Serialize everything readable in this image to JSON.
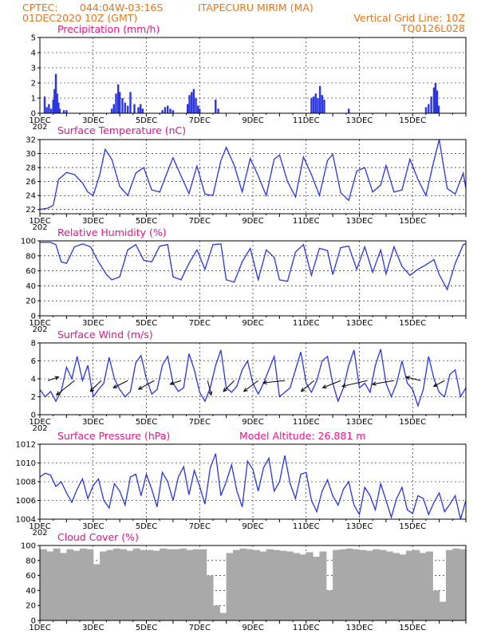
{
  "header": {
    "source": "CPTEC:",
    "coords": "044:04W-03:16S",
    "location": "ITAPECURU MIRIM (MA)",
    "datetime": "01DEC2020 10Z (GMT)",
    "grid_note": "Vertical Grid Line: 10Z",
    "code": "TQ0126L028"
  },
  "model_altitude": "Model Altitude: 26.881 m",
  "x_axis": {
    "day_ticks": [
      "1DEC",
      "3DEC",
      "5DEC",
      "7DEC",
      "9DEC",
      "11DEC",
      "13DEC",
      "15DEC"
    ],
    "first_label_sub": "202"
  },
  "colors": {
    "header": "#e07820",
    "panel_title": "#e8168a",
    "series": "#2b35e0",
    "cloud": "#a9a9a9"
  },
  "chart_data": [
    {
      "type": "bar",
      "title": "Precipitation (mm/h)",
      "ylim": [
        0,
        5
      ],
      "yticks": [
        "0",
        "1",
        "2",
        "3",
        "4",
        "5"
      ],
      "x": [
        0.18,
        0.26,
        0.34,
        0.42,
        0.5,
        0.55,
        0.6,
        0.65,
        0.7,
        0.75,
        0.9,
        1.0,
        2.7,
        2.78,
        2.86,
        2.94,
        3.0,
        3.1,
        3.2,
        3.3,
        3.4,
        3.55,
        3.7,
        3.78,
        3.86,
        4.6,
        4.7,
        4.8,
        4.9,
        5.0,
        5.55,
        5.62,
        5.7,
        5.78,
        5.86,
        5.94,
        6.0,
        6.6,
        6.7,
        10.2,
        10.28,
        10.36,
        10.44,
        10.52,
        10.6,
        10.68,
        11.6,
        14.5,
        14.6,
        14.7,
        14.8,
        14.86,
        14.92,
        14.98
      ],
      "values": [
        1.1,
        0.4,
        0.6,
        0.3,
        0.9,
        1.6,
        2.6,
        1.3,
        0.7,
        0.3,
        0.2,
        0.2,
        0.3,
        0.6,
        1.3,
        1.9,
        1.4,
        1.0,
        0.7,
        0.5,
        1.4,
        0.6,
        0.4,
        0.6,
        0.3,
        0.2,
        0.4,
        0.5,
        0.3,
        0.2,
        0.6,
        1.2,
        1.4,
        1.6,
        1.0,
        0.5,
        0.3,
        0.9,
        0.3,
        1.0,
        1.1,
        1.3,
        1.0,
        1.8,
        1.2,
        0.9,
        0.3,
        0.4,
        0.6,
        1.1,
        1.7,
        2.0,
        1.5,
        0.5
      ]
    },
    {
      "type": "line",
      "title": "Surface Temperature (nC)",
      "ylim": [
        21.4,
        32
      ],
      "yticks": [
        "22",
        "24",
        "26",
        "28",
        "30",
        "32"
      ],
      "x": [
        0,
        0.3,
        0.5,
        0.7,
        1.0,
        1.3,
        1.6,
        1.8,
        2.0,
        2.25,
        2.45,
        2.7,
        3.0,
        3.3,
        3.6,
        3.9,
        4.2,
        4.5,
        4.8,
        5.0,
        5.3,
        5.6,
        5.9,
        6.2,
        6.5,
        6.8,
        7.0,
        7.3,
        7.6,
        7.9,
        8.2,
        8.5,
        8.8,
        9.0,
        9.3,
        9.6,
        9.9,
        10.2,
        10.5,
        10.8,
        11.0,
        11.3,
        11.6,
        11.9,
        12.2,
        12.5,
        12.8,
        13.0,
        13.3,
        13.6,
        13.9,
        14.2,
        14.5,
        14.8,
        15.0,
        15.3,
        15.6,
        15.9,
        16.0
      ],
      "values": [
        22.0,
        22.2,
        22.6,
        26.3,
        27.3,
        27.0,
        25.8,
        24.5,
        24.0,
        27.0,
        30.6,
        29.2,
        25.3,
        24.0,
        27.2,
        28.0,
        24.8,
        24.5,
        27.5,
        29.4,
        26.8,
        24.3,
        28.2,
        24.2,
        24.0,
        29.0,
        30.9,
        28.3,
        24.5,
        29.3,
        26.8,
        24.0,
        29.2,
        29.8,
        26.0,
        23.8,
        29.5,
        27.0,
        24.0,
        29.0,
        29.9,
        24.4,
        23.3,
        27.5,
        28.0,
        24.5,
        25.5,
        28.3,
        24.5,
        24.8,
        29.2,
        26.3,
        24.0,
        29.0,
        32.0,
        25.0,
        24.2,
        27.2,
        25.0
      ]
    },
    {
      "type": "line",
      "title": "Relative Humidity (%)",
      "ylim": [
        0,
        100
      ],
      "yticks": [
        "0",
        "20",
        "40",
        "60",
        "80",
        "100"
      ],
      "x": [
        0,
        0.4,
        0.6,
        0.8,
        1.0,
        1.3,
        1.6,
        1.9,
        2.2,
        2.5,
        2.7,
        3.0,
        3.3,
        3.6,
        3.9,
        4.2,
        4.5,
        4.8,
        5.0,
        5.3,
        5.6,
        5.9,
        6.2,
        6.5,
        6.8,
        7.0,
        7.3,
        7.6,
        7.9,
        8.2,
        8.5,
        8.8,
        9.0,
        9.3,
        9.6,
        9.9,
        10.2,
        10.5,
        10.8,
        11.0,
        11.3,
        11.6,
        11.9,
        12.2,
        12.5,
        12.8,
        13.0,
        13.3,
        13.6,
        13.9,
        14.2,
        14.5,
        14.8,
        15.0,
        15.3,
        15.6,
        15.9,
        16.0
      ],
      "values": [
        98,
        98,
        95,
        72,
        70,
        92,
        96,
        92,
        72,
        55,
        48,
        52,
        88,
        95,
        74,
        72,
        93,
        95,
        52,
        48,
        70,
        88,
        62,
        95,
        96,
        48,
        45,
        72,
        90,
        48,
        88,
        78,
        48,
        46,
        85,
        95,
        54,
        90,
        87,
        55,
        91,
        93,
        62,
        92,
        58,
        88,
        56,
        92,
        66,
        54,
        62,
        68,
        75,
        55,
        35,
        70,
        95,
        96
      ]
    },
    {
      "type": "line",
      "title": "Surface Wind (m/s)",
      "ylim": [
        0,
        8
      ],
      "yticks": [
        "0",
        "2",
        "4",
        "6",
        "8"
      ],
      "x": [
        0,
        0.2,
        0.4,
        0.6,
        0.8,
        1.0,
        1.2,
        1.4,
        1.6,
        1.8,
        2.0,
        2.2,
        2.4,
        2.6,
        2.8,
        3.0,
        3.2,
        3.4,
        3.6,
        3.8,
        4.0,
        4.2,
        4.4,
        4.6,
        4.8,
        5.0,
        5.2,
        5.4,
        5.6,
        5.8,
        6.0,
        6.2,
        6.4,
        6.6,
        6.8,
        7.0,
        7.2,
        7.4,
        7.6,
        7.8,
        8.0,
        8.2,
        8.4,
        8.6,
        8.8,
        9.0,
        9.2,
        9.4,
        9.6,
        9.8,
        10.0,
        10.2,
        10.4,
        10.6,
        10.8,
        11.0,
        11.2,
        11.4,
        11.6,
        11.8,
        12.0,
        12.2,
        12.4,
        12.6,
        12.8,
        13.0,
        13.2,
        13.4,
        13.6,
        13.8,
        14.0,
        14.2,
        14.4,
        14.6,
        14.8,
        15.0,
        15.2,
        15.4,
        15.6,
        15.8,
        16.0
      ],
      "values": [
        2.8,
        2.0,
        2.6,
        1.5,
        2.6,
        5.3,
        4.0,
        6.5,
        3.8,
        5.5,
        2.0,
        2.8,
        3.5,
        6.4,
        4.0,
        2.8,
        2.0,
        2.6,
        5.8,
        6.6,
        4.0,
        2.3,
        2.8,
        5.5,
        6.5,
        3.5,
        2.6,
        3.0,
        6.8,
        5.0,
        2.5,
        1.5,
        3.0,
        5.5,
        7.2,
        3.0,
        2.5,
        3.2,
        5.0,
        6.0,
        3.5,
        2.3,
        3.5,
        5.0,
        6.5,
        2.0,
        2.5,
        3.0,
        5.0,
        7.0,
        3.5,
        2.5,
        3.8,
        6.0,
        6.5,
        3.5,
        1.5,
        3.0,
        5.5,
        7.2,
        3.0,
        3.5,
        2.5,
        5.5,
        7.3,
        3.5,
        2.0,
        3.5,
        6.0,
        3.5,
        2.8,
        1.0,
        2.8,
        6.5,
        4.0,
        2.5,
        2.0,
        4.5,
        5.0,
        2.0,
        3.0
      ],
      "arrows_x": [
        0.3,
        1.3,
        2.3,
        3.3,
        4.3,
        5.3,
        6.3,
        7.3,
        8.2,
        9.2,
        10.3,
        11.3,
        12.3,
        13.3,
        14.3,
        15.2
      ],
      "arrows_u": [
        -1.5,
        2.5,
        1.5,
        2.0,
        2.2,
        1.5,
        -0.5,
        1.5,
        2.0,
        3.0,
        1.8,
        2.5,
        3.5,
        3.0,
        2.0,
        1.5
      ],
      "arrows_v": [
        -0.5,
        2.0,
        1.5,
        1.0,
        1.2,
        0.5,
        2.0,
        1.5,
        1.5,
        0.3,
        1.5,
        1.0,
        0.8,
        0.5,
        -0.5,
        0.8
      ]
    },
    {
      "type": "line",
      "title": "Surface Pressure (hPa)",
      "ylim": [
        1004,
        1012
      ],
      "yticks": [
        "1004",
        "1006",
        "1008",
        "1010",
        "1012"
      ],
      "x": [
        0,
        0.2,
        0.4,
        0.6,
        0.8,
        1.0,
        1.2,
        1.4,
        1.6,
        1.8,
        2.0,
        2.2,
        2.4,
        2.6,
        2.8,
        3.0,
        3.2,
        3.4,
        3.6,
        3.8,
        4.0,
        4.2,
        4.4,
        4.6,
        4.8,
        5.0,
        5.2,
        5.4,
        5.6,
        5.8,
        6.0,
        6.2,
        6.4,
        6.6,
        6.8,
        7.0,
        7.2,
        7.4,
        7.6,
        7.8,
        8.0,
        8.2,
        8.4,
        8.6,
        8.8,
        9.0,
        9.2,
        9.4,
        9.6,
        9.8,
        10.0,
        10.2,
        10.4,
        10.6,
        10.8,
        11.0,
        11.2,
        11.4,
        11.6,
        11.8,
        12.0,
        12.2,
        12.4,
        12.6,
        12.8,
        13.0,
        13.2,
        13.4,
        13.6,
        13.8,
        14.0,
        14.2,
        14.4,
        14.6,
        14.8,
        15.0,
        15.2,
        15.4,
        15.6,
        15.8,
        16.0
      ],
      "values": [
        1008.5,
        1008.9,
        1008.7,
        1007.5,
        1008.0,
        1006.8,
        1005.8,
        1007.2,
        1008.3,
        1006.2,
        1007.6,
        1008.3,
        1006.0,
        1005.2,
        1007.8,
        1007.0,
        1005.5,
        1008.5,
        1008.8,
        1006.5,
        1008.8,
        1007.2,
        1005.3,
        1009.0,
        1008.0,
        1006.0,
        1008.5,
        1009.6,
        1006.6,
        1009.2,
        1007.5,
        1005.6,
        1009.5,
        1011.0,
        1006.5,
        1008.0,
        1009.8,
        1007.0,
        1005.3,
        1010.2,
        1009.3,
        1007.0,
        1009.5,
        1010.5,
        1007.0,
        1008.0,
        1010.8,
        1007.8,
        1006.2,
        1008.8,
        1009.0,
        1006.0,
        1004.8,
        1007.0,
        1008.2,
        1006.5,
        1005.5,
        1007.2,
        1008.0,
        1005.5,
        1004.5,
        1007.4,
        1006.5,
        1005.0,
        1007.8,
        1006.0,
        1004.2,
        1006.2,
        1007.4,
        1005.0,
        1004.6,
        1006.5,
        1006.2,
        1004.5,
        1005.8,
        1006.8,
        1004.8,
        1005.6,
        1006.5,
        1004.0,
        1006.0
      ]
    },
    {
      "type": "bar",
      "title": "Cloud Cover (%)",
      "ylim": [
        0,
        100
      ],
      "yticks": [
        "0",
        "20",
        "40",
        "60",
        "80",
        "100"
      ],
      "x": [
        0,
        0.25,
        0.5,
        0.75,
        1.0,
        1.25,
        1.5,
        1.75,
        2.0,
        2.25,
        2.5,
        2.75,
        3.0,
        3.25,
        3.5,
        3.75,
        4.0,
        4.25,
        4.5,
        4.75,
        5.0,
        5.25,
        5.5,
        5.75,
        6.0,
        6.25,
        6.5,
        6.75,
        7.0,
        7.25,
        7.5,
        7.75,
        8.0,
        8.25,
        8.5,
        8.75,
        9.0,
        9.25,
        9.5,
        9.75,
        10.0,
        10.25,
        10.5,
        10.75,
        11.0,
        11.25,
        11.5,
        11.75,
        12.0,
        12.25,
        12.5,
        12.75,
        13.0,
        13.25,
        13.5,
        13.75,
        14.0,
        14.25,
        14.5,
        14.75,
        15.0,
        15.25,
        15.5,
        15.75
      ],
      "values": [
        95,
        92,
        96,
        90,
        95,
        93,
        96,
        95,
        75,
        92,
        94,
        96,
        95,
        93,
        96,
        94,
        94,
        93,
        96,
        95,
        95,
        96,
        94,
        95,
        95,
        60,
        20,
        10,
        90,
        94,
        96,
        95,
        94,
        92,
        95,
        94,
        93,
        92,
        90,
        88,
        91,
        85,
        92,
        40,
        94,
        95,
        96,
        95,
        94,
        93,
        95,
        94,
        92,
        90,
        88,
        93,
        94,
        90,
        92,
        40,
        25,
        94,
        96,
        95
      ]
    }
  ]
}
